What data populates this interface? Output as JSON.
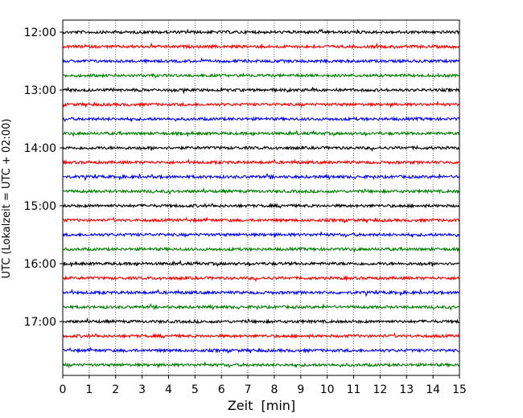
{
  "chart_data": {
    "type": "line",
    "title": "",
    "xlabel": "Zeit  [min]",
    "ylabel": "UTC (Lokalzeit = UTC + 02:00)",
    "xlim": [
      0,
      15
    ],
    "x_ticks": [
      "0",
      "1",
      "2",
      "3",
      "4",
      "5",
      "6",
      "7",
      "8",
      "9",
      "10",
      "11",
      "12",
      "13",
      "14",
      "15"
    ],
    "y_ticks": [
      "12:00",
      "13:00",
      "14:00",
      "15:00",
      "16:00",
      "17:00"
    ],
    "grid": "vertical dotted",
    "trace_colors": [
      "#000000",
      "#ff0000",
      "#0000ff",
      "#008000"
    ],
    "rows": [
      {
        "time": "12:00",
        "color": "#000000"
      },
      {
        "time": "12:15",
        "color": "#ff0000"
      },
      {
        "time": "12:30",
        "color": "#0000ff"
      },
      {
        "time": "12:45",
        "color": "#008000"
      },
      {
        "time": "13:00",
        "color": "#000000"
      },
      {
        "time": "13:15",
        "color": "#ff0000"
      },
      {
        "time": "13:30",
        "color": "#0000ff"
      },
      {
        "time": "13:45",
        "color": "#008000"
      },
      {
        "time": "14:00",
        "color": "#000000"
      },
      {
        "time": "14:15",
        "color": "#ff0000"
      },
      {
        "time": "14:30",
        "color": "#0000ff"
      },
      {
        "time": "14:45",
        "color": "#008000"
      },
      {
        "time": "15:00",
        "color": "#000000"
      },
      {
        "time": "15:15",
        "color": "#ff0000"
      },
      {
        "time": "15:30",
        "color": "#0000ff"
      },
      {
        "time": "15:45",
        "color": "#008000"
      },
      {
        "time": "16:00",
        "color": "#000000"
      },
      {
        "time": "16:15",
        "color": "#ff0000"
      },
      {
        "time": "16:30",
        "color": "#0000ff"
      },
      {
        "time": "16:45",
        "color": "#008000"
      },
      {
        "time": "17:00",
        "color": "#000000"
      },
      {
        "time": "17:15",
        "color": "#ff0000"
      },
      {
        "time": "17:30",
        "color": "#0000ff"
      },
      {
        "time": "17:45",
        "color": "#008000"
      }
    ]
  }
}
